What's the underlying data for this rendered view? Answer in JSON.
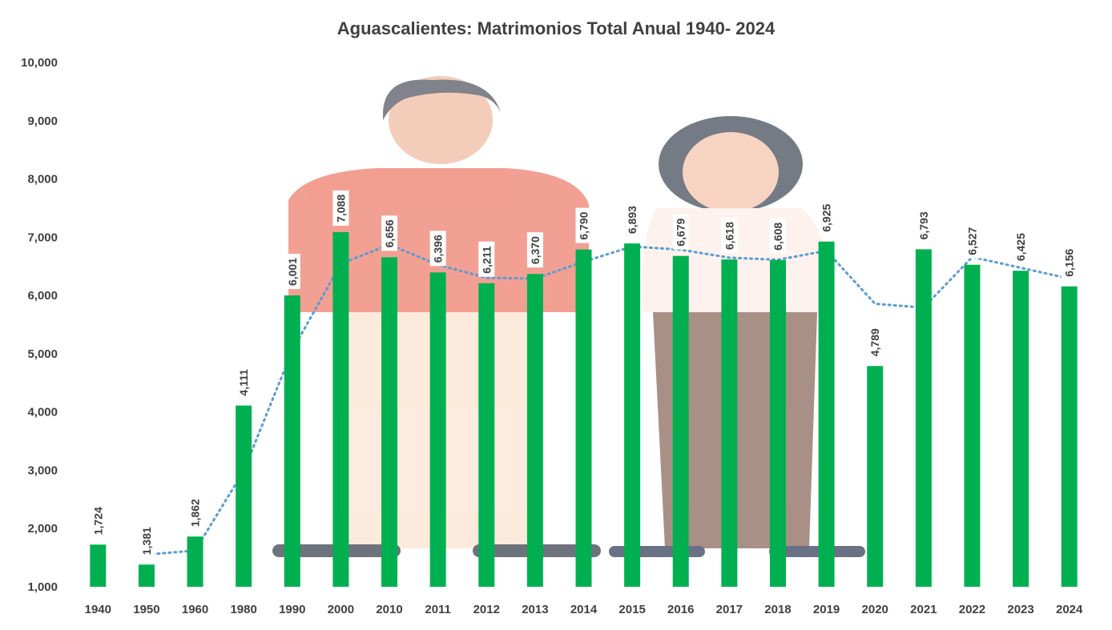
{
  "chart_data": {
    "type": "bar",
    "title": "Aguascalientes: Matrimonios Total Anual 1940- 2024",
    "xlabel": "",
    "ylabel": "",
    "ylim": [
      1000,
      10000
    ],
    "yticks": [
      "1,000",
      "2,000",
      "3,000",
      "4,000",
      "5,000",
      "6,000",
      "7,000",
      "8,000",
      "9,000",
      "10,000"
    ],
    "categories": [
      "1940",
      "1950",
      "1960",
      "1980",
      "1990",
      "2000",
      "2010",
      "2011",
      "2012",
      "2013",
      "2014",
      "2015",
      "2016",
      "2017",
      "2018",
      "2019",
      "2020",
      "2021",
      "2022",
      "2023",
      "2024"
    ],
    "values": [
      1724,
      1381,
      1862,
      4111,
      6001,
      7088,
      6656,
      6396,
      6211,
      6370,
      6790,
      6893,
      6679,
      6618,
      6608,
      6925,
      4789,
      6793,
      6527,
      6425,
      6156
    ],
    "value_labels": [
      "1,724",
      "1,381",
      "1,862",
      "4,111",
      "6,001",
      "7,088",
      "6,656",
      "6,396",
      "6,211",
      "6,370",
      "6,790",
      "6,893",
      "6,679",
      "6,618",
      "6,608",
      "6,925",
      "4,789",
      "6,793",
      "6,527",
      "6,425",
      "6,156"
    ],
    "trendline": "moving-average-dotted",
    "grid": false,
    "legend": "none",
    "colors": {
      "bar": "#00b050",
      "trend": "#5b9bd5",
      "text": "#404040"
    }
  }
}
